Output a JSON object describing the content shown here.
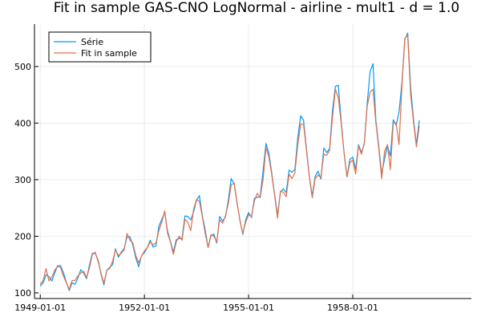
{
  "chart_data": {
    "type": "line",
    "title": "Fit in sample GAS-CNO LogNormal - airline - mult1 - d = 1.0",
    "xlabel": "",
    "ylabel": "",
    "x_start": "1949-01",
    "x_frequency": "monthly",
    "x_ticks": [
      "1949-01-01",
      "1952-01-01",
      "1955-01-01",
      "1958-01-01"
    ],
    "y_ticks": [
      100,
      200,
      300,
      400,
      500
    ],
    "ylim": [
      90,
      575
    ],
    "xlim": [
      "1948-11",
      "1961-06"
    ],
    "grid": true,
    "legend_position": "top-left",
    "series": [
      {
        "name": "Série",
        "color": "#009AFA",
        "values": [
          112,
          118,
          132,
          129,
          121,
          135,
          148,
          148,
          136,
          119,
          104,
          118,
          115,
          126,
          141,
          135,
          125,
          149,
          170,
          170,
          158,
          133,
          114,
          140,
          145,
          150,
          178,
          163,
          172,
          178,
          199,
          199,
          184,
          162,
          146,
          166,
          171,
          180,
          193,
          181,
          183,
          218,
          230,
          242,
          209,
          191,
          172,
          194,
          196,
          196,
          236,
          235,
          229,
          243,
          264,
          272,
          237,
          211,
          180,
          201,
          204,
          188,
          235,
          227,
          234,
          264,
          302,
          293,
          259,
          229,
          203,
          229,
          242,
          233,
          267,
          269,
          270,
          315,
          364,
          347,
          312,
          274,
          237,
          278,
          284,
          277,
          317,
          313,
          318,
          374,
          413,
          405,
          355,
          306,
          271,
          306,
          315,
          301,
          356,
          348,
          355,
          422,
          465,
          467,
          404,
          347,
          305,
          336,
          340,
          318,
          362,
          348,
          363,
          435,
          491,
          505,
          404,
          359,
          310,
          337,
          360,
          342,
          406,
          396,
          420,
          472,
          548,
          559,
          463,
          407,
          362,
          405
        ]
      },
      {
        "name": "Fit in sample",
        "color": "#E36F47",
        "values": [
          115,
          122,
          143,
          121,
          128,
          140,
          147,
          145,
          130,
          118,
          106,
          122,
          122,
          130,
          135,
          138,
          127,
          144,
          168,
          172,
          155,
          135,
          117,
          140,
          143,
          156,
          176,
          166,
          170,
          176,
          205,
          193,
          188,
          166,
          153,
          165,
          174,
          180,
          190,
          185,
          188,
          210,
          225,
          245,
          205,
          190,
          168,
          190,
          200,
          193,
          230,
          225,
          210,
          248,
          265,
          262,
          235,
          205,
          180,
          203,
          200,
          190,
          229,
          223,
          236,
          258,
          291,
          294,
          260,
          228,
          205,
          225,
          238,
          235,
          262,
          276,
          268,
          300,
          357,
          340,
          309,
          272,
          232,
          280,
          278,
          270,
          310,
          302,
          312,
          362,
          398,
          398,
          352,
          305,
          268,
          302,
          308,
          304,
          345,
          343,
          352,
          410,
          460,
          445,
          400,
          348,
          305,
          330,
          335,
          310,
          360,
          345,
          365,
          430,
          455,
          460,
          400,
          355,
          302,
          350,
          362,
          318,
          400,
          400,
          362,
          465,
          550,
          555,
          450,
          402,
          358,
          395
        ]
      }
    ]
  }
}
